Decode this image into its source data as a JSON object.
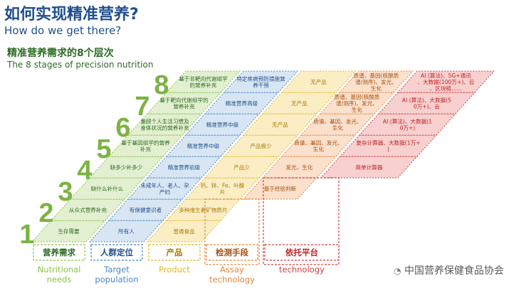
{
  "header": {
    "title": "如何实现精准营养?",
    "subtitle": "How do we get there?",
    "stages_cn": "精准营养需求的8个层次",
    "stages_en": "The 8 stages of precision nutrition"
  },
  "columns": [
    {
      "key": "needs",
      "header": "营养需求",
      "footer": [
        "Nutritional",
        "needs"
      ],
      "fill": "#e2efd0",
      "stroke": "#8bc34a",
      "text": "#2e6b25"
    },
    {
      "key": "population",
      "header": "人群定位",
      "footer": [
        "Target",
        "population"
      ],
      "fill": "#d8e6f4",
      "stroke": "#4a86c5",
      "text": "#1f4e8c"
    },
    {
      "key": "product",
      "header": "产品",
      "footer": [
        "Product"
      ],
      "fill": "#fbeec5",
      "stroke": "#e6b422",
      "text": "#a87800"
    },
    {
      "key": "assay",
      "header": "检测手段",
      "footer": [
        "Assay",
        "technology"
      ],
      "fill": "#fbe0cc",
      "stroke": "#e8863a",
      "text": "#a85010"
    },
    {
      "key": "platform",
      "header": "依托平台",
      "footer": [
        "technology"
      ],
      "fill": "#f8d0d0",
      "stroke": "#d04040",
      "text": "#c02020"
    }
  ],
  "rows": [
    {
      "num": "1",
      "cells": [
        "生存需要",
        "所有人",
        "普通食品",
        "",
        ""
      ]
    },
    {
      "num": "2",
      "cells": [
        "从众式营养补充",
        "有保健意识者",
        "多种维生素矿物质片",
        "",
        ""
      ]
    },
    {
      "num": "3",
      "cells": [
        "缺什么补什么",
        "未成年人、老人、孕产妇",
        "钙、锌、Fe、叶酸片",
        "基于经验判断",
        ""
      ]
    },
    {
      "num": "4",
      "cells": [
        "缺多少补多少",
        "精准营养初级",
        "产品少",
        "发光、生化",
        "简单计算器"
      ]
    },
    {
      "num": "5",
      "cells": [
        "基于基因组学的营养补充",
        "精准营养中级",
        "产品极少",
        "质谱、基因、发光、生化",
        "复杂计算器、大数据(1万+)"
      ]
    },
    {
      "num": "6",
      "cells": [
        "兼顾个人生活习惯及身体状况的营养补充",
        "精准营养中级",
        "无产品",
        "质谱、基因、发光、生化",
        "AI (算法)、大数据(10万+)"
      ]
    },
    {
      "num": "7",
      "cells": [
        "基于靶向代谢组学的营养补充",
        "精准营养高级",
        "无产品",
        "质谱、基因(核酸质谱/测序)、发光、生化",
        "AI (算法)、大数据(50万+)、云"
      ]
    },
    {
      "num": "8",
      "cells": [
        "基于非靶向代谢组学的营养补充",
        "特定疾病预防措施营养干预",
        "无产品",
        "质谱、基因(核酸质谱/测序)、发光、生化",
        "AI (算法)、5G+通讯、大数据(100万+)、云、区块链……"
      ]
    }
  ],
  "watermark": "中国营养保健食品协会"
}
